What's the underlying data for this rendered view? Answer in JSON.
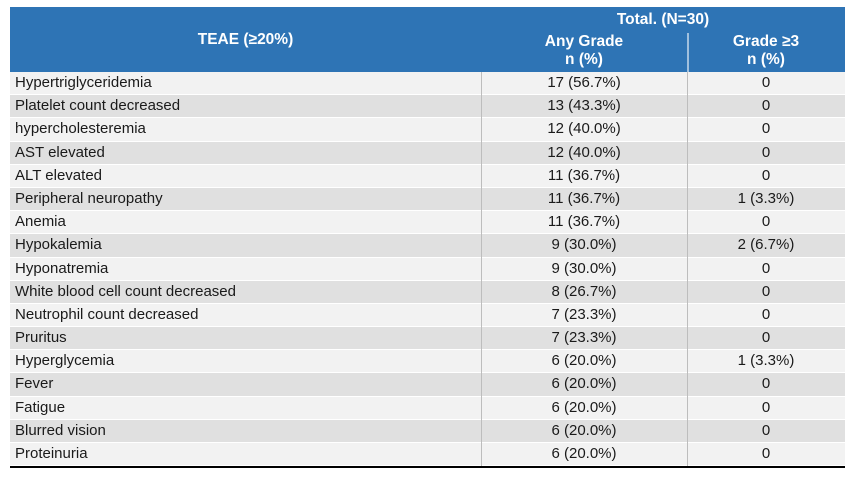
{
  "table": {
    "teae_header": "TEAE (≥20%)",
    "total_header": "Total. (N=30)",
    "subcolumns": [
      {
        "label": "Any Grade",
        "sublabel": "n (%)"
      },
      {
        "label": "Grade ≥3",
        "sublabel": "n (%)"
      }
    ],
    "rows": [
      {
        "teae": "Hypertriglyceridemia",
        "any_grade": "17 (56.7%)",
        "grade3": "0"
      },
      {
        "teae": "Platelet count decreased",
        "any_grade": "13 (43.3%)",
        "grade3": "0"
      },
      {
        "teae": "hypercholesteremia",
        "any_grade": "12 (40.0%)",
        "grade3": "0"
      },
      {
        "teae": "AST elevated",
        "any_grade": "12 (40.0%)",
        "grade3": "0"
      },
      {
        "teae": "ALT elevated",
        "any_grade": "11 (36.7%)",
        "grade3": "0"
      },
      {
        "teae": "Peripheral neuropathy",
        "any_grade": "11 (36.7%)",
        "grade3": "1 (3.3%)"
      },
      {
        "teae": "Anemia",
        "any_grade": "11 (36.7%)",
        "grade3": "0"
      },
      {
        "teae": "Hypokalemia",
        "any_grade": "9 (30.0%)",
        "grade3": "2 (6.7%)"
      },
      {
        "teae": "Hyponatremia",
        "any_grade": "9 (30.0%)",
        "grade3": "0"
      },
      {
        "teae": "White blood cell count decreased",
        "any_grade": "8 (26.7%)",
        "grade3": "0"
      },
      {
        "teae": "Neutrophil count decreased",
        "any_grade": "7 (23.3%)",
        "grade3": "0"
      },
      {
        "teae": "Pruritus",
        "any_grade": "7 (23.3%)",
        "grade3": "0"
      },
      {
        "teae": "Hyperglycemia",
        "any_grade": "6 (20.0%)",
        "grade3": "1 (3.3%)"
      },
      {
        "teae": "Fever",
        "any_grade": "6 (20.0%)",
        "grade3": "0"
      },
      {
        "teae": "Fatigue",
        "any_grade": "6 (20.0%)",
        "grade3": "0"
      },
      {
        "teae": "Blurred vision",
        "any_grade": "6 (20.0%)",
        "grade3": "0"
      },
      {
        "teae": "Proteinuria",
        "any_grade": "6 (20.0%)",
        "grade3": "0"
      }
    ]
  },
  "colors": {
    "header_bg": "#2e74b5",
    "header_text": "#ffffff",
    "row_light": "#f2f2f2",
    "row_dark": "#e0e0e0",
    "divider": "#bdbdbd",
    "bottom_border": "#000000",
    "body_text": "#1a1a1a"
  }
}
